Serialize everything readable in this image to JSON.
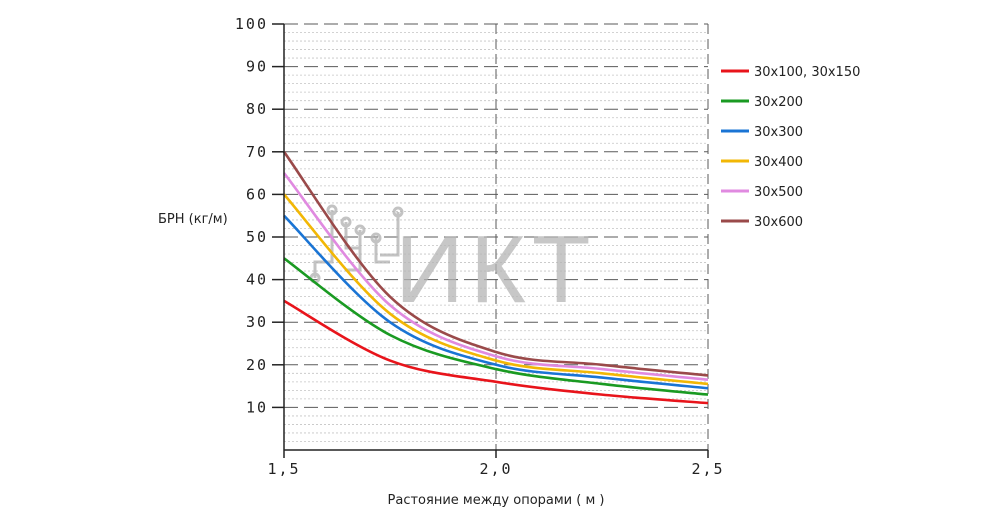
{
  "chart_data": {
    "type": "line",
    "ylabel": "БРН (кг/м)",
    "xlabel": "Растояние между опорами  ( м )",
    "xlim": [
      1.5,
      2.5
    ],
    "ylim": [
      0,
      100
    ],
    "x_ticks": [
      1.5,
      2.0,
      2.5
    ],
    "x_tick_labels": [
      "1,5",
      "2,0",
      "2,5"
    ],
    "y_ticks": [
      10,
      20,
      30,
      40,
      50,
      60,
      70,
      80,
      90,
      100
    ],
    "y_tick_labels": [
      "10",
      "20",
      "30",
      "40",
      "50",
      "60",
      "70",
      "80",
      "90",
      "100"
    ],
    "grid": true,
    "legend_position": "right",
    "series": [
      {
        "name": "30x100, 30x150",
        "color": "#e8141b",
        "x": [
          1.5,
          1.75,
          2.0,
          2.25,
          2.5
        ],
        "values": [
          35,
          21,
          16,
          13,
          11
        ]
      },
      {
        "name": "30x200",
        "color": "#1a9a22",
        "x": [
          1.5,
          1.75,
          2.0,
          2.25,
          2.5
        ],
        "values": [
          45,
          27,
          19,
          15.5,
          13
        ]
      },
      {
        "name": "30x300",
        "color": "#1a74d4",
        "x": [
          1.5,
          1.75,
          2.0,
          2.25,
          2.5
        ],
        "values": [
          55,
          30,
          20,
          17,
          14.5
        ]
      },
      {
        "name": "30x400",
        "color": "#f2b705",
        "x": [
          1.5,
          1.75,
          2.0,
          2.25,
          2.5
        ],
        "values": [
          60,
          32,
          21,
          18,
          15.5
        ]
      },
      {
        "name": "30x500",
        "color": "#e08ae0",
        "x": [
          1.5,
          1.75,
          2.0,
          2.25,
          2.5
        ],
        "values": [
          65,
          34,
          22,
          19,
          16.5
        ]
      },
      {
        "name": "30x600",
        "color": "#9a4a4a",
        "x": [
          1.5,
          1.75,
          2.0,
          2.25,
          2.5
        ],
        "values": [
          70,
          36,
          23,
          20,
          17.5
        ]
      }
    ]
  },
  "watermark": {
    "text": "ИКТ",
    "icon": "circuit-logo-icon",
    "color": "#b5b5b5"
  }
}
